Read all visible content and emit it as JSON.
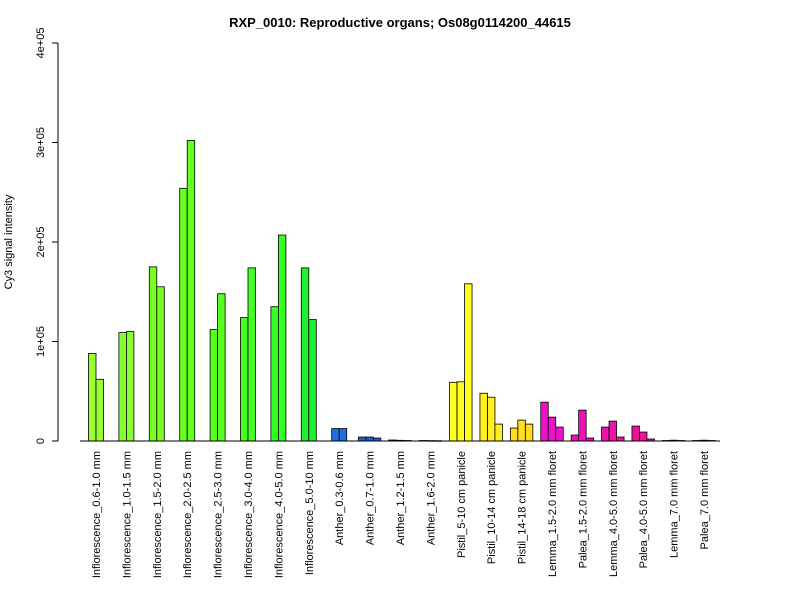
{
  "chart_data": {
    "type": "bar",
    "title": "RXP_0010: Reproductive organs; Os08g0114200_44615",
    "xlabel": "",
    "ylabel": "Cy3 signal intensity",
    "ylim": [
      0,
      400000
    ],
    "yticks": [
      0,
      100000,
      200000,
      300000,
      400000
    ],
    "ytick_labels": [
      "0",
      "1e+05",
      "2e+05",
      "3e+05",
      "4e+05"
    ],
    "grid": false,
    "groups": [
      {
        "label": "Inflorescence_0.6-1.0 mm",
        "color": "#99FF33",
        "values": [
          88000,
          62000
        ]
      },
      {
        "label": "Inflorescence_1.0-1.5 mm",
        "color": "#88FF33",
        "values": [
          109000,
          110000
        ]
      },
      {
        "label": "Inflorescence_1.5-2.0 mm",
        "color": "#77FF22",
        "values": [
          175000,
          155000
        ]
      },
      {
        "label": "Inflorescence_2.0-2.5 mm",
        "color": "#66FF22",
        "values": [
          254000,
          302000
        ]
      },
      {
        "label": "Inflorescence_2.5-3.0 mm",
        "color": "#55FF22",
        "values": [
          112000,
          148000
        ]
      },
      {
        "label": "Inflorescence_3.0-4.0 mm",
        "color": "#44FF22",
        "values": [
          124000,
          174000
        ]
      },
      {
        "label": "Inflorescence_4.0-5.0 mm",
        "color": "#33FF22",
        "values": [
          135000,
          207000
        ]
      },
      {
        "label": "Inflorescence_5.0-10 mm",
        "color": "#22EE33",
        "values": [
          174000,
          122000
        ]
      },
      {
        "label": "Anther_0.3-0.6 mm",
        "color": "#1E6FE0",
        "values": [
          12500,
          12500
        ]
      },
      {
        "label": "Anther_0.7-1.0 mm",
        "color": "#1E5FD8",
        "values": [
          4000,
          4000,
          3000
        ]
      },
      {
        "label": "Anther_1.2-1.5 mm",
        "color": "#1E50D0",
        "values": [
          1000,
          700,
          500
        ]
      },
      {
        "label": "Anther_1.6-2.0 mm",
        "color": "#1E40C8",
        "values": [
          500,
          400,
          300
        ]
      },
      {
        "label": "Pistil_5-10 cm panicle",
        "color": "#FFFF22",
        "values": [
          59000,
          59500,
          158000
        ]
      },
      {
        "label": "Pistil_10-14 cm panicle",
        "color": "#FFEE22",
        "values": [
          48000,
          44000,
          17000
        ]
      },
      {
        "label": "Pistil_14-18 cm panicle",
        "color": "#FFDD22",
        "values": [
          13000,
          21000,
          17000
        ]
      },
      {
        "label": "Lemma_1.5-2.0 mm floret",
        "color": "#EE11CC",
        "values": [
          39000,
          24000,
          14000
        ]
      },
      {
        "label": "Palea_1.5-2.0 mm floret",
        "color": "#EE11BB",
        "values": [
          6000,
          31000,
          3000
        ]
      },
      {
        "label": "Lemma_4.0-5.0 mm floret",
        "color": "#EE11AA",
        "values": [
          14000,
          20000,
          4000
        ]
      },
      {
        "label": "Palea_4.0-5.0 mm floret",
        "color": "#EE1199",
        "values": [
          15000,
          9000,
          2000
        ]
      },
      {
        "label": "Lemma_7.0 mm floret",
        "color": "#DD1188",
        "values": [
          500,
          800,
          500
        ]
      },
      {
        "label": "Palea_7.0 mm floret",
        "color": "#DD1177",
        "values": [
          500,
          800,
          500
        ]
      }
    ]
  }
}
